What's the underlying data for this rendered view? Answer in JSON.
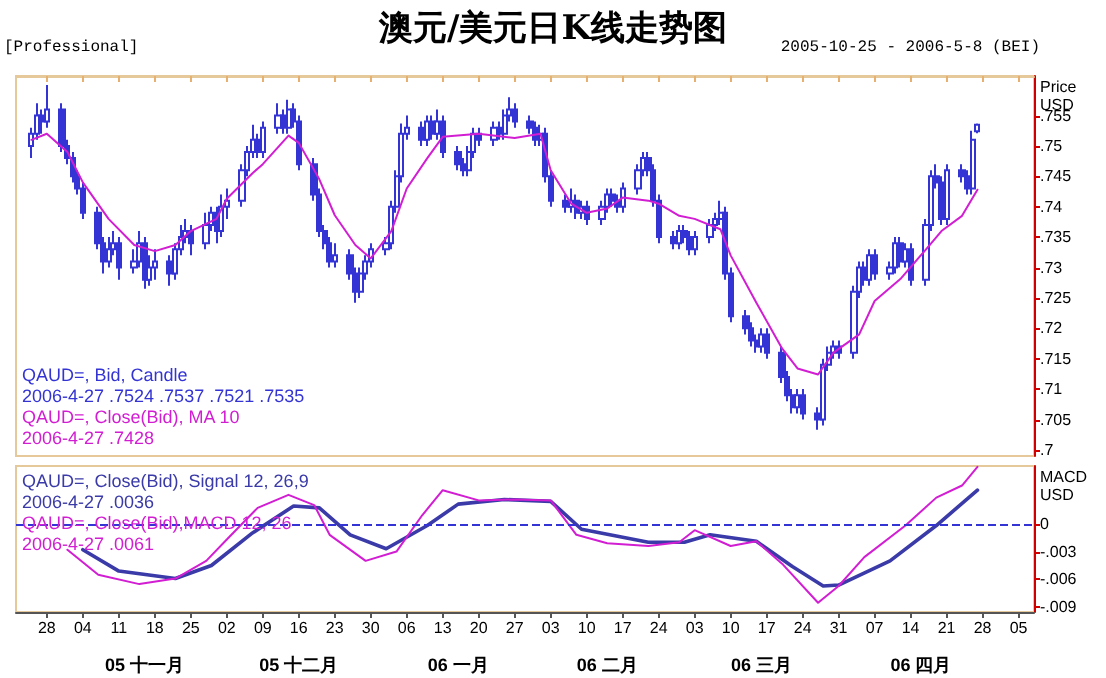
{
  "chart_data": [
    {
      "type": "candlestick",
      "title": "澳元/美元日K线走势图",
      "ylabel": "Price\nUSD",
      "annotations": [
        "[Professional]",
        "2005-10-25 - 2006-5-8 (BEI)",
        "2006-4-27 .7524 .7537 .7521 .7535",
        "2006-4-27 .7428"
      ],
      "xlim": [
        "2005-10-22",
        "2006-05-08"
      ],
      "xticks": [
        {
          "value": "2005-10-28",
          "label": null
        },
        {
          "value": "2005-11-04",
          "label": null
        },
        {
          "value": "2005-11-11",
          "label": null
        },
        {
          "value": "2005-11-18",
          "label": null
        },
        {
          "value": "2005-11-25",
          "label": null
        },
        {
          "value": "2005-12-02",
          "label": null
        },
        {
          "value": "2005-12-09",
          "label": null
        },
        {
          "value": "2005-12-16",
          "label": null
        },
        {
          "value": "2005-12-23",
          "label": null
        },
        {
          "value": "2005-12-30",
          "label": null
        },
        {
          "value": "2006-01-06",
          "label": null
        },
        {
          "value": "2006-01-13",
          "label": null
        },
        {
          "value": "2006-01-20",
          "label": null
        },
        {
          "value": "2006-01-27",
          "label": null
        },
        {
          "value": "2006-02-03",
          "label": null
        },
        {
          "value": "2006-02-10",
          "label": null
        },
        {
          "value": "2006-02-17",
          "label": null
        },
        {
          "value": "2006-02-24",
          "label": null
        },
        {
          "value": "2006-03-03",
          "label": null
        },
        {
          "value": "2006-03-10",
          "label": null
        },
        {
          "value": "2006-03-17",
          "label": null
        },
        {
          "value": "2006-03-24",
          "label": null
        },
        {
          "value": "2006-03-31",
          "label": null
        },
        {
          "value": "2006-04-07",
          "label": null
        },
        {
          "value": "2006-04-14",
          "label": null
        },
        {
          "value": "2006-04-21",
          "label": null
        },
        {
          "value": "2006-04-28",
          "label": null
        },
        {
          "value": "2006-05-05",
          "label": null
        }
      ],
      "tick_labels": "y",
      "ylim": [
        0.699,
        0.7615
      ],
      "yticks": [
        {
          "value": 0.7,
          "label": ".7"
        },
        {
          "value": 0.705,
          "label": ".705"
        },
        {
          "value": 0.71,
          "label": ".71"
        },
        {
          "value": 0.715,
          "label": ".715"
        },
        {
          "value": 0.72,
          "label": ".72"
        },
        {
          "value": 0.725,
          "label": ".725"
        },
        {
          "value": 0.73,
          "label": ".73"
        },
        {
          "value": 0.735,
          "label": ".735"
        },
        {
          "value": 0.74,
          "label": ".74"
        },
        {
          "value": 0.745,
          "label": ".745"
        },
        {
          "value": 0.75,
          "label": ".75"
        },
        {
          "value": 0.755,
          "label": ".755"
        }
      ],
      "series": [
        {
          "type": "candlestick",
          "name": "QAUD=, Bid, Candle",
          "color": "#3434d4",
          "x": [
            "2005-10-25",
            "2005-10-26",
            "2005-10-27",
            "2005-10-28",
            "2005-10-31",
            "2005-11-01",
            "2005-11-02",
            "2005-11-03",
            "2005-11-04",
            "2005-11-07",
            "2005-11-08",
            "2005-11-09",
            "2005-11-10",
            "2005-11-11",
            "2005-11-14",
            "2005-11-15",
            "2005-11-16",
            "2005-11-17",
            "2005-11-18",
            "2005-11-21",
            "2005-11-22",
            "2005-11-23",
            "2005-11-24",
            "2005-11-25",
            "2005-11-28",
            "2005-11-29",
            "2005-11-30",
            "2005-12-01",
            "2005-12-02",
            "2005-12-05",
            "2005-12-06",
            "2005-12-07",
            "2005-12-08",
            "2005-12-09",
            "2005-12-12",
            "2005-12-13",
            "2005-12-14",
            "2005-12-15",
            "2005-12-16",
            "2005-12-19",
            "2005-12-20",
            "2005-12-21",
            "2005-12-22",
            "2005-12-23",
            "2005-12-26",
            "2005-12-27",
            "2005-12-28",
            "2005-12-29",
            "2005-12-30",
            "2006-01-02",
            "2006-01-03",
            "2006-01-04",
            "2006-01-05",
            "2006-01-06",
            "2006-01-09",
            "2006-01-10",
            "2006-01-11",
            "2006-01-12",
            "2006-01-13",
            "2006-01-16",
            "2006-01-17",
            "2006-01-18",
            "2006-01-19",
            "2006-01-20",
            "2006-01-23",
            "2006-01-24",
            "2006-01-25",
            "2006-01-26",
            "2006-01-27",
            "2006-01-30",
            "2006-01-31",
            "2006-02-01",
            "2006-02-02",
            "2006-02-03",
            "2006-02-06",
            "2006-02-07",
            "2006-02-08",
            "2006-02-09",
            "2006-02-10",
            "2006-02-13",
            "2006-02-14",
            "2006-02-15",
            "2006-02-16",
            "2006-02-17",
            "2006-02-20",
            "2006-02-21",
            "2006-02-22",
            "2006-02-23",
            "2006-02-24",
            "2006-02-27",
            "2006-02-28",
            "2006-03-01",
            "2006-03-02",
            "2006-03-03",
            "2006-03-06",
            "2006-03-07",
            "2006-03-08",
            "2006-03-09",
            "2006-03-10",
            "2006-03-13",
            "2006-03-14",
            "2006-03-15",
            "2006-03-16",
            "2006-03-17",
            "2006-03-20",
            "2006-03-21",
            "2006-03-22",
            "2006-03-23",
            "2006-03-24",
            "2006-03-27",
            "2006-03-28",
            "2006-03-29",
            "2006-03-30",
            "2006-03-31",
            "2006-04-03",
            "2006-04-04",
            "2006-04-05",
            "2006-04-06",
            "2006-04-07",
            "2006-04-10",
            "2006-04-11",
            "2006-04-12",
            "2006-04-13",
            "2006-04-14",
            "2006-04-17",
            "2006-04-18",
            "2006-04-19",
            "2006-04-20",
            "2006-04-21",
            "2006-04-24",
            "2006-04-25",
            "2006-04-26",
            "2006-04-27"
          ],
          "ohlc": [
            [
              0.75,
              0.753,
              0.748,
              0.752
            ],
            [
              0.752,
              0.757,
              0.751,
              0.755
            ],
            [
              0.755,
              0.756,
              0.752,
              0.754
            ],
            [
              0.754,
              0.76,
              0.753,
              0.756
            ],
            [
              0.756,
              0.757,
              0.749,
              0.75
            ],
            [
              0.75,
              0.751,
              0.747,
              0.748
            ],
            [
              0.748,
              0.749,
              0.744,
              0.745
            ],
            [
              0.745,
              0.746,
              0.742,
              0.743
            ],
            [
              0.743,
              0.744,
              0.738,
              0.739
            ],
            [
              0.739,
              0.74,
              0.733,
              0.734
            ],
            [
              0.734,
              0.735,
              0.729,
              0.731
            ],
            [
              0.731,
              0.735,
              0.73,
              0.733
            ],
            [
              0.733,
              0.736,
              0.732,
              0.734
            ],
            [
              0.734,
              0.735,
              0.728,
              0.73
            ],
            [
              0.73,
              0.733,
              0.729,
              0.731
            ],
            [
              0.731,
              0.736,
              0.73,
              0.734
            ],
            [
              0.734,
              0.735,
              0.7265,
              0.728
            ],
            [
              0.728,
              0.732,
              0.727,
              0.73
            ],
            [
              0.73,
              0.733,
              0.728,
              0.731
            ],
            [
              0.731,
              0.732,
              0.727,
              0.729
            ],
            [
              0.729,
              0.734,
              0.728,
              0.733
            ],
            [
              0.733,
              0.737,
              0.732,
              0.735
            ],
            [
              0.735,
              0.738,
              0.734,
              0.736
            ],
            [
              0.736,
              0.737,
              0.732,
              0.734
            ],
            [
              0.734,
              0.739,
              0.733,
              0.737
            ],
            [
              0.737,
              0.74,
              0.736,
              0.739
            ],
            [
              0.739,
              0.74,
              0.734,
              0.736
            ],
            [
              0.736,
              0.742,
              0.735,
              0.74
            ],
            [
              0.74,
              0.743,
              0.738,
              0.741
            ],
            [
              0.741,
              0.747,
              0.74,
              0.746
            ],
            [
              0.746,
              0.75,
              0.745,
              0.749
            ],
            [
              0.749,
              0.7535,
              0.748,
              0.751
            ],
            [
              0.751,
              0.752,
              0.748,
              0.749
            ],
            [
              0.749,
              0.754,
              0.748,
              0.753
            ],
            [
              0.753,
              0.757,
              0.752,
              0.755
            ],
            [
              0.755,
              0.756,
              0.752,
              0.753
            ],
            [
              0.753,
              0.7576,
              0.752,
              0.756
            ],
            [
              0.756,
              0.757,
              0.753,
              0.754
            ],
            [
              0.754,
              0.755,
              0.746,
              0.747
            ],
            [
              0.747,
              0.748,
              0.741,
              0.742
            ],
            [
              0.742,
              0.743,
              0.735,
              0.736
            ],
            [
              0.736,
              0.737,
              0.733,
              0.734
            ],
            [
              0.734,
              0.735,
              0.73,
              0.731
            ],
            [
              0.731,
              0.734,
              0.73,
              0.732
            ],
            [
              0.732,
              0.733,
              0.728,
              0.729
            ],
            [
              0.729,
              0.73,
              0.7242,
              0.726
            ],
            [
              0.726,
              0.73,
              0.725,
              0.729
            ],
            [
              0.729,
              0.732,
              0.728,
              0.731
            ],
            [
              0.731,
              0.734,
              0.73,
              0.733
            ],
            [
              0.733,
              0.735,
              0.732,
              0.734
            ],
            [
              0.734,
              0.741,
              0.733,
              0.74
            ],
            [
              0.74,
              0.746,
              0.739,
              0.745
            ],
            [
              0.745,
              0.7537,
              0.744,
              0.752
            ],
            [
              0.752,
              0.755,
              0.751,
              0.753
            ],
            [
              0.753,
              0.754,
              0.75,
              0.751
            ],
            [
              0.751,
              0.755,
              0.75,
              0.754
            ],
            [
              0.754,
              0.755,
              0.751,
              0.752
            ],
            [
              0.752,
              0.756,
              0.751,
              0.754
            ],
            [
              0.754,
              0.755,
              0.748,
              0.749
            ],
            [
              0.749,
              0.75,
              0.746,
              0.747
            ],
            [
              0.747,
              0.748,
              0.745,
              0.746
            ],
            [
              0.746,
              0.75,
              0.745,
              0.749
            ],
            [
              0.749,
              0.753,
              0.748,
              0.752
            ],
            [
              0.752,
              0.753,
              0.75,
              0.751
            ],
            [
              0.751,
              0.754,
              0.75,
              0.753
            ],
            [
              0.753,
              0.754,
              0.751,
              0.752
            ],
            [
              0.752,
              0.756,
              0.751,
              0.755
            ],
            [
              0.755,
              0.758,
              0.754,
              0.756
            ],
            [
              0.756,
              0.757,
              0.753,
              0.754
            ],
            [
              0.754,
              0.755,
              0.752,
              0.753
            ],
            [
              0.753,
              0.754,
              0.75,
              0.751
            ],
            [
              0.751,
              0.7535,
              0.75,
              0.752
            ],
            [
              0.752,
              0.753,
              0.744,
              0.745
            ],
            [
              0.745,
              0.746,
              0.74,
              0.741
            ],
            [
              0.741,
              0.742,
              0.739,
              0.74
            ],
            [
              0.74,
              0.743,
              0.739,
              0.741
            ],
            [
              0.741,
              0.742,
              0.738,
              0.739
            ],
            [
              0.739,
              0.741,
              0.738,
              0.74
            ],
            [
              0.74,
              0.741,
              0.737,
              0.738
            ],
            [
              0.738,
              0.741,
              0.737,
              0.74
            ],
            [
              0.74,
              0.743,
              0.739,
              0.742
            ],
            [
              0.742,
              0.743,
              0.74,
              0.741
            ],
            [
              0.741,
              0.742,
              0.739,
              0.74
            ],
            [
              0.74,
              0.744,
              0.739,
              0.743
            ],
            [
              0.743,
              0.747,
              0.742,
              0.746
            ],
            [
              0.746,
              0.749,
              0.745,
              0.748
            ],
            [
              0.748,
              0.749,
              0.745,
              0.746
            ],
            [
              0.746,
              0.747,
              0.74,
              0.741
            ],
            [
              0.741,
              0.742,
              0.734,
              0.735
            ],
            [
              0.735,
              0.736,
              0.733,
              0.734
            ],
            [
              0.734,
              0.737,
              0.733,
              0.736
            ],
            [
              0.736,
              0.737,
              0.734,
              0.735
            ],
            [
              0.735,
              0.736,
              0.732,
              0.733
            ],
            [
              0.733,
              0.736,
              0.732,
              0.735
            ],
            [
              0.735,
              0.738,
              0.734,
              0.737
            ],
            [
              0.737,
              0.739,
              0.736,
              0.738
            ],
            [
              0.738,
              0.741,
              0.737,
              0.739
            ],
            [
              0.739,
              0.74,
              0.728,
              0.729
            ],
            [
              0.729,
              0.73,
              0.721,
              0.722
            ],
            [
              0.722,
              0.723,
              0.719,
              0.72
            ],
            [
              0.72,
              0.721,
              0.717,
              0.718
            ],
            [
              0.718,
              0.719,
              0.716,
              0.717
            ],
            [
              0.717,
              0.72,
              0.716,
              0.719
            ],
            [
              0.719,
              0.72,
              0.715,
              0.716
            ],
            [
              0.716,
              0.717,
              0.711,
              0.712
            ],
            [
              0.712,
              0.713,
              0.708,
              0.709
            ],
            [
              0.709,
              0.71,
              0.706,
              0.707
            ],
            [
              0.707,
              0.71,
              0.706,
              0.709
            ],
            [
              0.709,
              0.71,
              0.705,
              0.706
            ],
            [
              0.706,
              0.707,
              0.7033,
              0.705
            ],
            [
              0.705,
              0.715,
              0.704,
              0.714
            ],
            [
              0.714,
              0.717,
              0.713,
              0.716
            ],
            [
              0.716,
              0.718,
              0.715,
              0.717
            ],
            [
              0.717,
              0.718,
              0.715,
              0.716
            ],
            [
              0.716,
              0.727,
              0.715,
              0.726
            ],
            [
              0.726,
              0.731,
              0.725,
              0.73
            ],
            [
              0.73,
              0.731,
              0.727,
              0.728
            ],
            [
              0.728,
              0.733,
              0.727,
              0.732
            ],
            [
              0.732,
              0.733,
              0.728,
              0.729
            ],
            [
              0.729,
              0.731,
              0.728,
              0.73
            ],
            [
              0.73,
              0.735,
              0.729,
              0.734
            ],
            [
              0.734,
              0.735,
              0.73,
              0.731
            ],
            [
              0.731,
              0.734,
              0.73,
              0.733
            ],
            [
              0.733,
              0.734,
              0.727,
              0.728
            ],
            [
              0.728,
              0.738,
              0.727,
              0.737
            ],
            [
              0.737,
              0.746,
              0.736,
              0.745
            ],
            [
              0.745,
              0.747,
              0.743,
              0.744
            ],
            [
              0.744,
              0.745,
              0.737,
              0.738
            ],
            [
              0.738,
              0.747,
              0.737,
              0.746
            ],
            [
              0.746,
              0.747,
              0.744,
              0.745
            ],
            [
              0.745,
              0.746,
              0.742,
              0.743
            ],
            [
              0.743,
              0.7525,
              0.742,
              0.751
            ],
            [
              0.7524,
              0.7537,
              0.7521,
              0.7535
            ]
          ]
        },
        {
          "type": "line",
          "name": "QAUD=, Close(Bid), MA 10",
          "color": "#d21ed2",
          "x": [
            "2005-10-25",
            "2005-10-28",
            "2005-11-01",
            "2005-11-04",
            "2005-11-09",
            "2005-11-14",
            "2005-11-18",
            "2005-11-22",
            "2005-11-25",
            "2005-11-30",
            "2005-12-02",
            "2005-12-07",
            "2005-12-09",
            "2005-12-14",
            "2005-12-16",
            "2005-12-20",
            "2005-12-23",
            "2005-12-27",
            "2005-12-30",
            "2006-01-03",
            "2006-01-06",
            "2006-01-10",
            "2006-01-13",
            "2006-01-20",
            "2006-01-27",
            "2006-02-01",
            "2006-02-03",
            "2006-02-07",
            "2006-02-10",
            "2006-02-14",
            "2006-02-17",
            "2006-02-22",
            "2006-02-24",
            "2006-02-28",
            "2006-03-03",
            "2006-03-08",
            "2006-03-10",
            "2006-03-15",
            "2006-03-20",
            "2006-03-23",
            "2006-03-27",
            "2006-03-30",
            "2006-04-04",
            "2006-04-07",
            "2006-04-12",
            "2006-04-17",
            "2006-04-20",
            "2006-04-24",
            "2006-04-27"
          ],
          "values": [
            0.751,
            0.752,
            0.749,
            0.744,
            0.738,
            0.7337,
            0.7327,
            0.7337,
            0.736,
            0.738,
            0.7413,
            0.7455,
            0.747,
            0.7517,
            0.7505,
            0.7445,
            0.7386,
            0.7337,
            0.7315,
            0.736,
            0.743,
            0.748,
            0.7515,
            0.752,
            0.7513,
            0.752,
            0.746,
            0.7405,
            0.739,
            0.7397,
            0.7415,
            0.741,
            0.7405,
            0.7385,
            0.738,
            0.7363,
            0.732,
            0.7242,
            0.7167,
            0.7134,
            0.7124,
            0.716,
            0.719,
            0.7245,
            0.7281,
            0.733,
            0.736,
            0.7385,
            0.7428
          ]
        }
      ]
    },
    {
      "type": "line",
      "ylabel": "MACD\nUSD",
      "annotations": [
        "2006-4-27 .0036",
        "2006-4-27 .0061"
      ],
      "x2lim": [
        "2005-10-22",
        "2006-05-08"
      ],
      "x2ticks": [
        {
          "value": "2005-11-16",
          "label": "05 十一月"
        },
        {
          "value": "2005-12-16",
          "label": "05 十二月"
        },
        {
          "value": "2006-01-16",
          "label": "06 一月"
        },
        {
          "value": "2006-02-14",
          "label": "06 二月"
        },
        {
          "value": "2006-03-16",
          "label": "06 三月"
        },
        {
          "value": "2006-04-16",
          "label": "06 四月"
        }
      ],
      "xlim": [
        "2005-10-22",
        "2006-05-08"
      ],
      "xticks": [
        {
          "value": "2005-10-28",
          "label": "28"
        },
        {
          "value": "2005-11-04",
          "label": "04"
        },
        {
          "value": "2005-11-11",
          "label": "11"
        },
        {
          "value": "2005-11-18",
          "label": "18"
        },
        {
          "value": "2005-11-25",
          "label": "25"
        },
        {
          "value": "2005-12-02",
          "label": "02"
        },
        {
          "value": "2005-12-09",
          "label": "09"
        },
        {
          "value": "2005-12-16",
          "label": "16"
        },
        {
          "value": "2005-12-23",
          "label": "23"
        },
        {
          "value": "2005-12-30",
          "label": "30"
        },
        {
          "value": "2006-01-06",
          "label": "06"
        },
        {
          "value": "2006-01-13",
          "label": "13"
        },
        {
          "value": "2006-01-20",
          "label": "20"
        },
        {
          "value": "2006-01-27",
          "label": "27"
        },
        {
          "value": "2006-02-03",
          "label": "03"
        },
        {
          "value": "2006-02-10",
          "label": "10"
        },
        {
          "value": "2006-02-17",
          "label": "17"
        },
        {
          "value": "2006-02-24",
          "label": "24"
        },
        {
          "value": "2006-03-03",
          "label": "03"
        },
        {
          "value": "2006-03-10",
          "label": "10"
        },
        {
          "value": "2006-03-17",
          "label": "17"
        },
        {
          "value": "2006-03-24",
          "label": "24"
        },
        {
          "value": "2006-03-31",
          "label": "31"
        },
        {
          "value": "2006-04-07",
          "label": "07"
        },
        {
          "value": "2006-04-14",
          "label": "14"
        },
        {
          "value": "2006-04-21",
          "label": "21"
        },
        {
          "value": "2006-04-28",
          "label": "28"
        },
        {
          "value": "2006-05-05",
          "label": "05"
        }
      ],
      "ylim": [
        -0.0095,
        0.0062
      ],
      "yticks": [
        {
          "value": -0.009,
          "label": "-.009"
        },
        {
          "value": -0.006,
          "label": "-.006"
        },
        {
          "value": -0.003,
          "label": "-.003"
        },
        {
          "value": 0,
          "label": "0"
        }
      ],
      "ref_lines": [
        {
          "axis": "y",
          "value": 0,
          "color": "#3434d4",
          "line_style": "dashed"
        }
      ],
      "series": [
        {
          "name": "QAUD=, Close(Bid), Signal 12, 26,9",
          "color": "#3a3aa8",
          "x": [
            "2005-11-04",
            "2005-11-11",
            "2005-11-22",
            "2005-11-29",
            "2005-12-07",
            "2005-12-15",
            "2005-12-20",
            "2005-12-26",
            "2006-01-02",
            "2006-01-10",
            "2006-01-16",
            "2006-01-25",
            "2006-02-03",
            "2006-02-09",
            "2006-02-22",
            "2006-03-01",
            "2006-03-06",
            "2006-03-15",
            "2006-03-22",
            "2006-03-28",
            "2006-03-31",
            "2006-04-10",
            "2006-04-19",
            "2006-04-27"
          ],
          "values": [
            -0.0028,
            -0.0051,
            -0.0059,
            -0.0045,
            -0.001,
            0.0019,
            0.0017,
            -0.0012,
            -0.0027,
            -0.0002,
            0.0021,
            0.0026,
            0.0024,
            -0.0006,
            -0.002,
            -0.002,
            -0.0012,
            -0.0019,
            -0.0046,
            -0.0067,
            -0.0066,
            -0.004,
            -0.0002,
            0.0036
          ]
        },
        {
          "name": "QAUD=, Close(Bid),MACD 12, 26",
          "color": "#d21ed2",
          "x": [
            "2005-11-01",
            "2005-11-07",
            "2005-11-15",
            "2005-11-22",
            "2005-11-28",
            "2005-12-02",
            "2005-12-08",
            "2005-12-14",
            "2005-12-19",
            "2005-12-22",
            "2005-12-29",
            "2006-01-04",
            "2006-01-09",
            "2006-01-13",
            "2006-01-20",
            "2006-01-27",
            "2006-02-03",
            "2006-02-08",
            "2006-02-14",
            "2006-02-22",
            "2006-02-28",
            "2006-03-03",
            "2006-03-10",
            "2006-03-15",
            "2006-03-20",
            "2006-03-27",
            "2006-03-31",
            "2006-04-05",
            "2006-04-13",
            "2006-04-19",
            "2006-04-24",
            "2006-04-27"
          ],
          "values": [
            -0.0028,
            -0.0055,
            -0.0065,
            -0.0059,
            -0.004,
            -0.0017,
            0.0017,
            0.0031,
            0.002,
            -0.0012,
            -0.004,
            -0.003,
            0.0009,
            0.0036,
            0.0025,
            0.0026,
            0.0025,
            -0.0012,
            -0.0021,
            -0.0024,
            -0.002,
            -0.0007,
            -0.0024,
            -0.0019,
            -0.0043,
            -0.0085,
            -0.0067,
            -0.0036,
            -0.0002,
            0.0028,
            0.0041,
            0.0061
          ]
        }
      ]
    }
  ]
}
